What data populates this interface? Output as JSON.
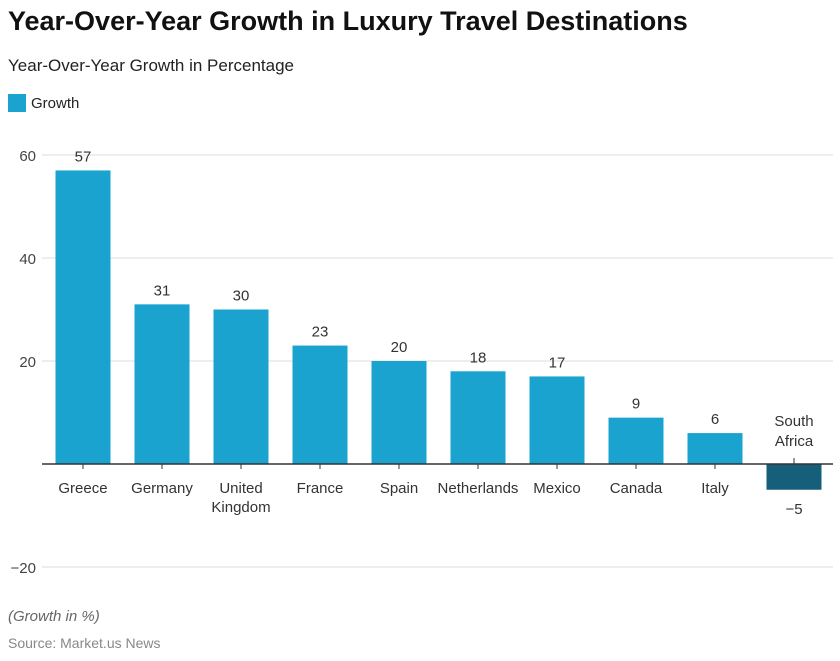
{
  "chart_data": {
    "type": "bar",
    "title": "Year-Over-Year Growth in Luxury Travel Destinations",
    "subtitle": "Year-Over-Year Growth in Percentage",
    "categories": [
      "Greece",
      "Germany",
      "United Kingdom",
      "France",
      "Spain",
      "Netherlands",
      "Mexico",
      "Canada",
      "Italy",
      "South Africa"
    ],
    "series": [
      {
        "name": "Growth",
        "values": [
          57,
          31,
          30,
          23,
          20,
          18,
          17,
          9,
          6,
          -5
        ]
      }
    ],
    "ylim": [
      -20,
      60
    ],
    "yticks": [
      -20,
      20,
      40,
      60
    ],
    "grid": true,
    "legend_position": "top-left",
    "colors": {
      "positive": "#1aa3cf",
      "negative": "#165f7a"
    },
    "note": "(Growth in %)",
    "source": "Source: Market.us News"
  }
}
